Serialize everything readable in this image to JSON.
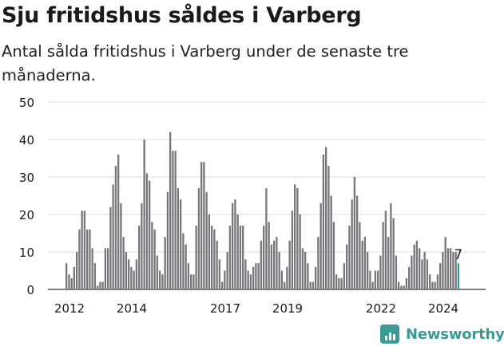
{
  "header": {
    "title": "Sju fritidshus såldes i Varberg",
    "subtitle": "Antal sålda fritidshus i Varberg under de senaste tre månaderna."
  },
  "brand": {
    "name": "Newsworthy"
  },
  "colors": {
    "bar": "#77777b",
    "highlight": "#3b9a93",
    "grid": "#dddddd",
    "text": "#1a1a1a"
  },
  "chart_data": {
    "type": "bar",
    "title": "Sju fritidshus såldes i Varberg",
    "subtitle": "Antal sålda fritidshus i Varberg under de senaste tre månaderna.",
    "x_start": "2012-01",
    "x_ticks": [
      "2012",
      "2014",
      "2017",
      "2019",
      "2022",
      "2024"
    ],
    "x_tick_years": [
      2012,
      2014,
      2017,
      2019,
      2022,
      2024
    ],
    "y_ticks": [
      0,
      10,
      20,
      30,
      40,
      50
    ],
    "ylim": [
      0,
      50
    ],
    "grid": true,
    "series": [
      {
        "values": [
          7,
          4,
          3,
          6,
          10,
          16,
          21,
          21,
          16,
          16,
          11,
          7,
          1,
          2,
          2,
          11,
          11,
          22,
          28,
          33,
          36,
          23,
          14,
          10,
          8,
          6,
          5,
          8,
          17,
          23,
          40,
          31,
          29,
          18,
          16,
          9,
          5,
          4,
          14,
          26,
          42,
          37,
          37,
          27,
          24,
          15,
          12,
          7,
          4,
          4,
          17,
          27,
          34,
          34,
          26,
          20,
          17,
          16,
          13,
          8,
          2,
          5,
          10,
          17,
          23,
          24,
          20,
          17,
          17,
          8,
          5,
          4,
          6,
          7,
          7,
          13,
          17,
          27,
          18,
          12,
          13,
          14,
          10,
          5,
          2,
          6,
          13,
          21,
          28,
          27,
          20,
          11,
          10,
          7,
          2,
          2,
          6,
          14,
          23,
          36,
          38,
          33,
          25,
          18,
          4,
          3,
          3,
          7,
          12,
          17,
          24,
          30,
          25,
          18,
          13,
          14,
          10,
          5,
          2,
          5,
          5,
          9,
          18,
          21,
          14,
          23,
          19,
          9,
          2,
          1,
          1,
          3,
          6,
          9,
          12,
          13,
          11,
          8,
          10,
          8,
          4,
          2,
          2,
          4,
          7,
          10,
          14,
          11,
          11,
          10,
          10,
          7
        ]
      }
    ],
    "annotation": {
      "label": "7",
      "value": 7
    }
  }
}
